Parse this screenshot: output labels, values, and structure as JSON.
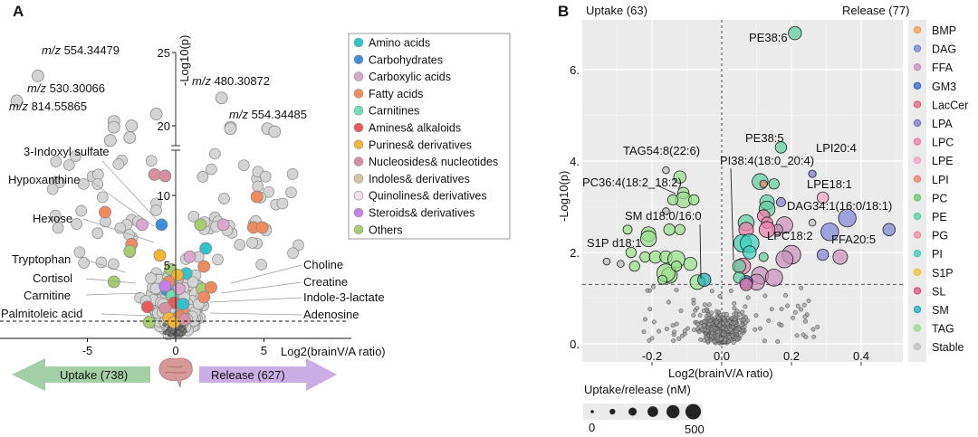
{
  "chart_data": [
    {
      "panel": "A",
      "type": "scatter",
      "title": "",
      "xlabel": "Log2(brainV/A ratio)",
      "ylabel": "-Log10(p)",
      "xlim": [
        -10,
        10
      ],
      "x_ticks": [
        "-5",
        "0",
        "5"
      ],
      "x_tick_values": [
        -5,
        0,
        5
      ],
      "y_ticks": [
        "5",
        "10",
        "20",
        "25"
      ],
      "y_tick_values": [
        5,
        10,
        20,
        25
      ],
      "y_axis_break": [
        15,
        18
      ],
      "significance_threshold_y": 1.3,
      "legend": {
        "placement": "top-right",
        "entries": [
          {
            "label": "Amino acids",
            "color": "#2ec4cf"
          },
          {
            "label": "Carbohydrates",
            "color": "#3b8fdc"
          },
          {
            "label": "Carboxylic acids",
            "color": "#d9a8cc"
          },
          {
            "label": "Fatty acids",
            "color": "#f08a5d"
          },
          {
            "label": "Carnitines",
            "color": "#6ee0b4"
          },
          {
            "label": "Amines& alkaloids",
            "color": "#e85a5a"
          },
          {
            "label": "Purines& derivatives",
            "color": "#f5b731"
          },
          {
            "label": "Nucleosides& nucleotides",
            "color": "#d98fa2"
          },
          {
            "label": "Indoles& derivatives",
            "color": "#d9c4a8"
          },
          {
            "label": "Quinolines& derivatives",
            "color": "#eedfe8"
          },
          {
            "label": "Steroids& derivatives",
            "color": "#c77ee6"
          },
          {
            "label": "Others",
            "color": "#a6cf6b"
          }
        ]
      },
      "annotations": [
        {
          "text": "m/z 554.34479",
          "x": -7.9,
          "y": 23.3
        },
        {
          "text": "m/z 530.30066",
          "x": -8.9,
          "y": 21.6
        },
        {
          "text": "m/z 814.55865",
          "x": -3.5,
          "y": 20.2
        },
        {
          "text": "m/z 480.30872",
          "x": 2.0,
          "y": 21.0
        },
        {
          "text": "m/z 554.34485",
          "x": 3.7,
          "y": 19.6
        },
        {
          "text": "3-Indoxyl sulfate",
          "x": -1.6,
          "y": 11.2
        },
        {
          "text": "Hypoxanthine",
          "x": -1.3,
          "y": 9.3
        },
        {
          "text": "Hexose",
          "x": -0.9,
          "y": 7.8
        },
        {
          "text": "Tryptophan",
          "x": -1.8,
          "y": 5.0
        },
        {
          "text": "Cortisol",
          "x": -1.2,
          "y": 4.3
        },
        {
          "text": "Carnitine",
          "x": -0.8,
          "y": 3.6
        },
        {
          "text": "Palmitoleic acid",
          "x": -1.1,
          "y": 1.5
        },
        {
          "text": "Choline",
          "x": 1.4,
          "y": 4.0
        },
        {
          "text": "Creatine",
          "x": 1.6,
          "y": 3.5
        },
        {
          "text": "Indole-3-lactate",
          "x": 1.2,
          "y": 3.0
        },
        {
          "text": "Adenosine",
          "x": 1.8,
          "y": 2.1
        }
      ],
      "highlighted_points": [
        {
          "x": -7.8,
          "y": 23.4,
          "class": "Stable"
        },
        {
          "x": -9.0,
          "y": 21.7,
          "class": "Stable"
        },
        {
          "x": -3.5,
          "y": 20.3,
          "class": "Stable"
        },
        {
          "x": -3.5,
          "y": 19.9,
          "class": "Stable"
        },
        {
          "x": -2.5,
          "y": 20.0,
          "class": "Stable"
        },
        {
          "x": -3.7,
          "y": 19.0,
          "class": "Stable"
        },
        {
          "x": -2.6,
          "y": 19.2,
          "class": "Stable"
        },
        {
          "x": -1.1,
          "y": 20.8,
          "class": "Stable"
        },
        {
          "x": 2.6,
          "y": 21.9,
          "class": "Stable"
        },
        {
          "x": 3.1,
          "y": 19.9,
          "class": "Stable"
        },
        {
          "x": 3.1,
          "y": 19.8,
          "class": "Stable"
        },
        {
          "x": 5.2,
          "y": 19.8,
          "class": "Stable"
        },
        {
          "x": 5.6,
          "y": 19.6,
          "class": "Stable"
        },
        {
          "x": -1.2,
          "y": 11.5,
          "class": "Nucleosides& nucleotides"
        },
        {
          "x": -0.6,
          "y": 11.4,
          "class": "Nucleosides& nucleotides"
        },
        {
          "x": 4.6,
          "y": 9.9,
          "class": "Fatty acids"
        },
        {
          "x": -4.0,
          "y": 8.8,
          "class": "Fatty acids"
        },
        {
          "x": 4.4,
          "y": 7.7,
          "class": "Fatty acids"
        },
        {
          "x": 4.9,
          "y": 7.7,
          "class": "Fatty acids"
        },
        {
          "x": -2.5,
          "y": 6.5,
          "class": "Fatty acids"
        },
        {
          "x": -0.8,
          "y": 7.9,
          "class": "Carbohydrates"
        },
        {
          "x": -1.9,
          "y": 7.9,
          "class": "Carboxylic acids"
        },
        {
          "x": 1.4,
          "y": 7.9,
          "class": "Others"
        },
        {
          "x": 2.7,
          "y": 7.9,
          "class": "Carboxylic acids"
        },
        {
          "x": -2.6,
          "y": 6.0,
          "class": "Others"
        },
        {
          "x": -3.5,
          "y": 3.8,
          "class": "Others"
        },
        {
          "x": 1.7,
          "y": 6.2,
          "class": "Amino acids"
        },
        {
          "x": 0.8,
          "y": 5.6,
          "class": "Carboxylic acids"
        },
        {
          "x": 1.6,
          "y": 4.9,
          "class": "Fatty acids"
        },
        {
          "x": 0.6,
          "y": 4.4,
          "class": "Amino acids"
        },
        {
          "x": 1.5,
          "y": 3.3,
          "class": "Others"
        },
        {
          "x": 2.0,
          "y": 3.4,
          "class": "Fatty acids"
        },
        {
          "x": 1.6,
          "y": 2.7,
          "class": "Fatty acids"
        },
        {
          "x": -0.9,
          "y": 5.7,
          "class": "Purines& derivatives"
        },
        {
          "x": -0.3,
          "y": 4.7,
          "class": "Others"
        },
        {
          "x": 0.1,
          "y": 4.3,
          "class": "Purines& derivatives"
        },
        {
          "x": -0.4,
          "y": 3.8,
          "class": "Fatty acids"
        },
        {
          "x": -0.5,
          "y": 3.2,
          "class": "Carbohydrates"
        },
        {
          "x": -0.2,
          "y": 2.8,
          "class": "Carnitines"
        },
        {
          "x": 0.2,
          "y": 3.3,
          "class": "Carboxylic acids"
        },
        {
          "x": -0.1,
          "y": 2.3,
          "class": "Amines& alkaloids"
        },
        {
          "x": -1.6,
          "y": 2.0,
          "class": "Amines& alkaloids"
        },
        {
          "x": -0.6,
          "y": 1.9,
          "class": "Nucleosides& nucleotides"
        },
        {
          "x": 0.4,
          "y": 1.8,
          "class": "Fatty acids"
        },
        {
          "x": -0.4,
          "y": 1.2,
          "class": "Purines& derivatives"
        },
        {
          "x": 0.2,
          "y": 1.3,
          "class": "Fatty acids"
        },
        {
          "x": -1.5,
          "y": 0.9,
          "class": "Others"
        },
        {
          "x": -0.1,
          "y": 0.9,
          "class": "Purines& derivatives"
        },
        {
          "x": 0.5,
          "y": 1.1,
          "class": "Nucleosides& nucleotides"
        },
        {
          "x": -0.6,
          "y": 3.5,
          "class": "Steroids& derivatives"
        },
        {
          "x": 0.4,
          "y": 2.2,
          "class": "Amino acids"
        }
      ],
      "bottom_arrows": {
        "uptake_label": "Uptake (738)",
        "release_label": "Release (627)",
        "uptake_color": "#a3cfa6",
        "release_color": "#c9aee6",
        "center_icon": "brain-icon"
      }
    },
    {
      "panel": "B",
      "type": "scatter",
      "title": "",
      "xlabel": "Log2(brainV/A ratio)",
      "ylabel": "-Log10(p)",
      "xlim": [
        -0.37,
        0.52
      ],
      "ylim": [
        -0.3,
        7.0
      ],
      "x_ticks": [
        "-0.2",
        "0.0",
        "0.2",
        "0.4"
      ],
      "x_tick_values": [
        -0.2,
        0.0,
        0.2,
        0.4
      ],
      "y_ticks": [
        "0",
        "2",
        "4",
        "6"
      ],
      "y_tick_values": [
        0,
        2,
        4,
        6
      ],
      "grid": true,
      "significance_threshold_y": 1.3,
      "vertical_line_x": 0.0,
      "header_left": "Uptake (63)",
      "header_right": "Release (77)",
      "legend": {
        "placement": "right",
        "entries": [
          {
            "label": "BMP",
            "color": "#f0a050"
          },
          {
            "label": "DAG",
            "color": "#7d82d6"
          },
          {
            "label": "FFA",
            "color": "#c98fb8"
          },
          {
            "label": "GM3",
            "color": "#3a5fc8"
          },
          {
            "label": "LacCer",
            "color": "#e8607f"
          },
          {
            "label": "LPA",
            "color": "#7a78cf"
          },
          {
            "label": "LPC",
            "color": "#f07aa8"
          },
          {
            "label": "LPE",
            "color": "#f2a3c2"
          },
          {
            "label": "LPI",
            "color": "#f07f6e"
          },
          {
            "label": "PC",
            "color": "#6cc46c"
          },
          {
            "label": "PE",
            "color": "#5ccf9f"
          },
          {
            "label": "PG",
            "color": "#f08ca0"
          },
          {
            "label": "PI",
            "color": "#3cd0b8"
          },
          {
            "label": "S1P",
            "color": "#f0c030"
          },
          {
            "label": "SL",
            "color": "#e0507a"
          },
          {
            "label": "SM",
            "color": "#1cb0b0"
          },
          {
            "label": "TAG",
            "color": "#98e08a"
          },
          {
            "label": "Stable",
            "color": "#c0c0c0"
          }
        ]
      },
      "size_legend": {
        "title": "Uptake/release (nM)",
        "min_label": "0",
        "max_label": "500",
        "steps": 6
      },
      "annotations": [
        {
          "text": "PE38:6",
          "x": 0.21,
          "y": 6.8
        },
        {
          "text": "PE38:5",
          "x": 0.15,
          "y": 4.3
        },
        {
          "text": "LPI20:4",
          "x": 0.26,
          "y": 3.75
        },
        {
          "text": "PI38:4(18:0_20:4)",
          "x": 0.04,
          "y": 2.1
        },
        {
          "text": "LPE18:1",
          "x": 0.29,
          "y": 3.2
        },
        {
          "text": "DAG34:1(16:0/18:1)",
          "x": 0.36,
          "y": 2.75
        },
        {
          "text": "LPC18:2",
          "x": 0.17,
          "y": 2.5
        },
        {
          "text": "FFA20:5",
          "x": 0.33,
          "y": 1.9
        },
        {
          "text": "TAG54:8(22:6)",
          "x": -0.12,
          "y": 3.2
        },
        {
          "text": "PC36:4(18:2_18:2)",
          "x": -0.11,
          "y": 3.1
        },
        {
          "text": "SM d18:0/16:0",
          "x": -0.05,
          "y": 1.4
        },
        {
          "text": "S1P d18:1",
          "x": -0.18,
          "y": 2.2
        }
      ],
      "points": [
        {
          "x": 0.21,
          "y": 6.8,
          "class": "PE",
          "size": 120
        },
        {
          "x": 0.17,
          "y": 4.3,
          "class": "PE",
          "size": 80
        },
        {
          "x": 0.11,
          "y": 3.55,
          "class": "PE",
          "size": 200
        },
        {
          "x": 0.15,
          "y": 3.5,
          "class": "PE",
          "size": 60
        },
        {
          "x": 0.12,
          "y": 3.5,
          "class": "LPI",
          "size": 20
        },
        {
          "x": 0.26,
          "y": 3.72,
          "class": "LPA",
          "size": 20
        },
        {
          "x": 0.29,
          "y": 3.2,
          "class": "LPE",
          "size": 80
        },
        {
          "x": 0.17,
          "y": 3.1,
          "class": "DAG",
          "size": 40
        },
        {
          "x": 0.13,
          "y": 3.1,
          "class": "PE",
          "size": 160
        },
        {
          "x": 0.13,
          "y": 2.95,
          "class": "PE",
          "size": 200
        },
        {
          "x": 0.36,
          "y": 2.75,
          "class": "DAG",
          "size": 260
        },
        {
          "x": 0.48,
          "y": 2.5,
          "class": "DAG",
          "size": 100
        },
        {
          "x": 0.31,
          "y": 2.45,
          "class": "DAG",
          "size": 260
        },
        {
          "x": 0.26,
          "y": 2.65,
          "class": "Stable",
          "size": 15
        },
        {
          "x": 0.29,
          "y": 1.95,
          "class": "DAG",
          "size": 80
        },
        {
          "x": 0.34,
          "y": 1.9,
          "class": "FFA",
          "size": 160
        },
        {
          "x": 0.18,
          "y": 2.6,
          "class": "FFA",
          "size": 220
        },
        {
          "x": 0.16,
          "y": 2.5,
          "class": "FFA",
          "size": 60
        },
        {
          "x": 0.2,
          "y": 1.95,
          "class": "FFA",
          "size": 300
        },
        {
          "x": 0.18,
          "y": 1.85,
          "class": "FFA",
          "size": 240
        },
        {
          "x": 0.11,
          "y": 1.5,
          "class": "FFA",
          "size": 240
        },
        {
          "x": 0.15,
          "y": 1.45,
          "class": "FFA",
          "size": 240
        },
        {
          "x": 0.1,
          "y": 1.35,
          "class": "FFA",
          "size": 200
        },
        {
          "x": 0.07,
          "y": 1.35,
          "class": "GM3",
          "size": 120
        },
        {
          "x": 0.12,
          "y": 2.8,
          "class": "LPC",
          "size": 100
        },
        {
          "x": 0.13,
          "y": 2.65,
          "class": "LPC",
          "size": 80
        },
        {
          "x": 0.13,
          "y": 2.5,
          "class": "LPC",
          "size": 200
        },
        {
          "x": 0.07,
          "y": 2.65,
          "class": "PE",
          "size": 200
        },
        {
          "x": 0.07,
          "y": 2.5,
          "class": "LPC",
          "size": 160
        },
        {
          "x": 0.06,
          "y": 2.2,
          "class": "PI",
          "size": 260
        },
        {
          "x": 0.08,
          "y": 2.2,
          "class": "PI",
          "size": 300
        },
        {
          "x": 0.08,
          "y": 2.0,
          "class": "PI",
          "size": 120
        },
        {
          "x": 0.06,
          "y": 1.7,
          "class": "LPC",
          "size": 200
        },
        {
          "x": 0.05,
          "y": 1.7,
          "class": "PE",
          "size": 120
        },
        {
          "x": 0.05,
          "y": 1.45,
          "class": "PE",
          "size": 80
        },
        {
          "x": 0.07,
          "y": 1.3,
          "class": "LPC",
          "size": 100
        },
        {
          "x": 0.12,
          "y": 1.9,
          "class": "PE",
          "size": 40
        },
        {
          "x": -0.12,
          "y": 3.65,
          "class": "TAG",
          "size": 100
        },
        {
          "x": -0.11,
          "y": 3.3,
          "class": "TAG",
          "size": 80
        },
        {
          "x": -0.11,
          "y": 3.15,
          "class": "TAG",
          "size": 200
        },
        {
          "x": -0.14,
          "y": 3.15,
          "class": "TAG",
          "size": 60
        },
        {
          "x": -0.08,
          "y": 3.15,
          "class": "TAG",
          "size": 60
        },
        {
          "x": -0.16,
          "y": 3.8,
          "class": "Stable",
          "size": 15
        },
        {
          "x": -0.16,
          "y": 2.9,
          "class": "Stable",
          "size": 15
        },
        {
          "x": -0.27,
          "y": 2.5,
          "class": "TAG",
          "size": 40
        },
        {
          "x": -0.21,
          "y": 2.4,
          "class": "TAG",
          "size": 160
        },
        {
          "x": -0.21,
          "y": 2.3,
          "class": "TAG",
          "size": 200
        },
        {
          "x": -0.15,
          "y": 2.5,
          "class": "TAG",
          "size": 80
        },
        {
          "x": -0.12,
          "y": 2.5,
          "class": "TAG",
          "size": 60
        },
        {
          "x": -0.26,
          "y": 2.0,
          "class": "TAG",
          "size": 60
        },
        {
          "x": -0.22,
          "y": 1.9,
          "class": "TAG",
          "size": 60
        },
        {
          "x": -0.19,
          "y": 1.9,
          "class": "TAG",
          "size": 100
        },
        {
          "x": -0.16,
          "y": 1.9,
          "class": "TAG",
          "size": 100
        },
        {
          "x": -0.13,
          "y": 1.85,
          "class": "TAG",
          "size": 240
        },
        {
          "x": -0.09,
          "y": 1.75,
          "class": "TAG",
          "size": 120
        },
        {
          "x": -0.15,
          "y": 1.5,
          "class": "TAG",
          "size": 200
        },
        {
          "x": -0.16,
          "y": 1.55,
          "class": "TAG",
          "size": 280
        },
        {
          "x": -0.13,
          "y": 1.7,
          "class": "TAG",
          "size": 60
        },
        {
          "x": -0.25,
          "y": 1.7,
          "class": "TAG",
          "size": 60
        },
        {
          "x": -0.07,
          "y": 1.35,
          "class": "TAG",
          "size": 160
        },
        {
          "x": -0.05,
          "y": 1.4,
          "class": "SM",
          "size": 120
        },
        {
          "x": -0.17,
          "y": 1.4,
          "class": "TAG",
          "size": 40
        },
        {
          "x": -0.33,
          "y": 1.8,
          "class": "Stable",
          "size": 15
        },
        {
          "x": -0.29,
          "y": 1.75,
          "class": "Stable",
          "size": 15
        }
      ]
    }
  ]
}
